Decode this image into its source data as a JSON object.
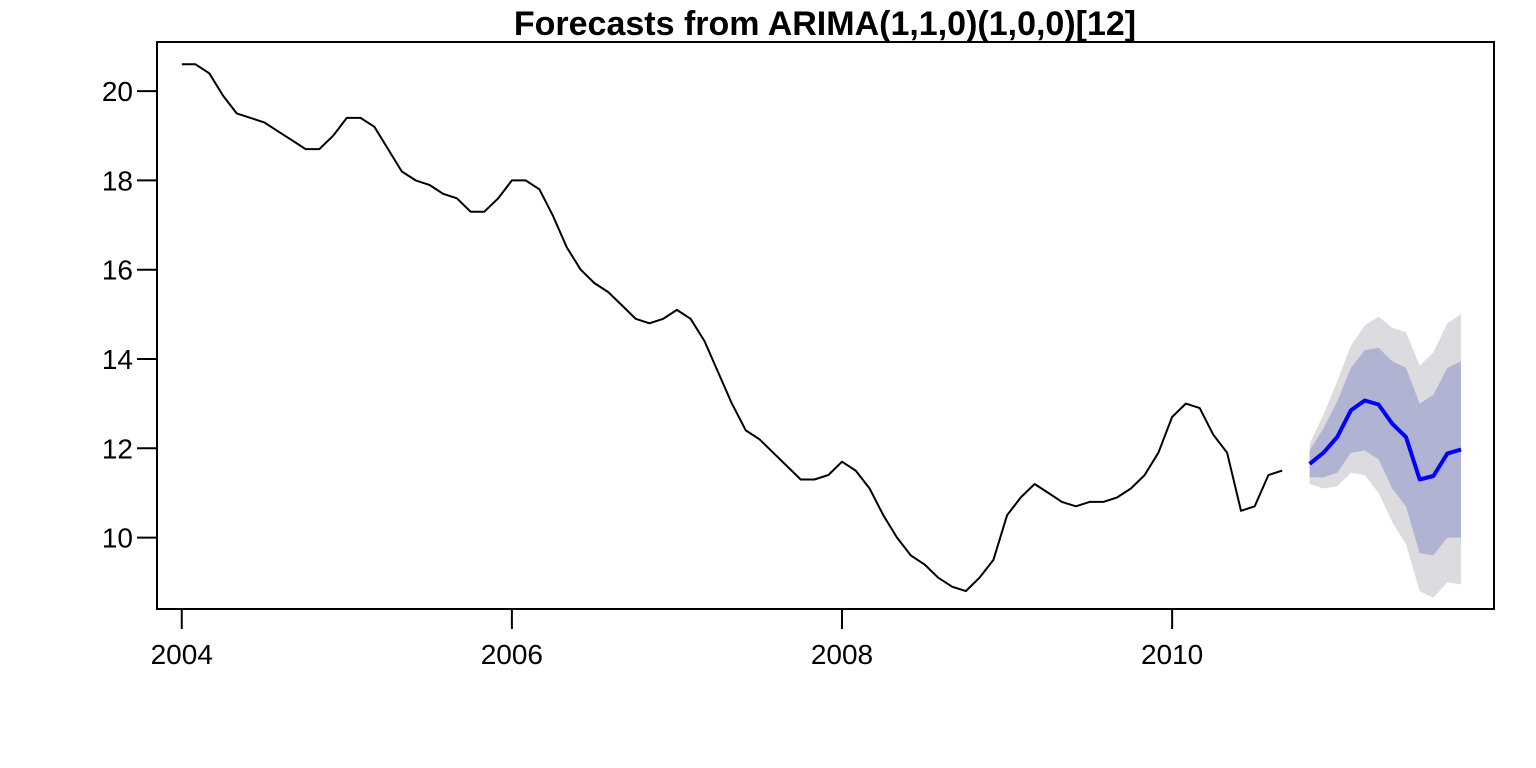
{
  "chart_data": {
    "type": "line",
    "title": "Forecasts from ARIMA(1,1,0)(1,0,0)[12]",
    "xlabel": "",
    "ylabel": "",
    "xlim": [
      2003.85,
      2011.95
    ],
    "ylim": [
      8.4,
      21.1
    ],
    "x_ticks": [
      2004,
      2006,
      2008,
      2010
    ],
    "x_tick_labels": [
      "2004",
      "2006",
      "2008",
      "2010"
    ],
    "y_ticks": [
      10,
      12,
      14,
      16,
      18,
      20
    ],
    "y_tick_labels": [
      "10",
      "12",
      "14",
      "16",
      "18",
      "20"
    ],
    "grid": false,
    "colors": {
      "observed": "#000000",
      "forecast": "#0000ff",
      "band80": "#b0b4d2",
      "band95": "#dbdbe0"
    },
    "series": [
      {
        "x": [
          2004.0,
          2004.083,
          2004.167,
          2004.25,
          2004.333,
          2004.417,
          2004.5,
          2004.583,
          2004.667,
          2004.75,
          2004.833,
          2004.917,
          2005.0,
          2005.083,
          2005.167,
          2005.25,
          2005.333,
          2005.417,
          2005.5,
          2005.583,
          2005.667,
          2005.75,
          2005.833,
          2005.917,
          2006.0,
          2006.083,
          2006.167,
          2006.25,
          2006.333,
          2006.417,
          2006.5,
          2006.583,
          2006.667,
          2006.75,
          2006.833,
          2006.917,
          2007.0,
          2007.083,
          2007.167,
          2007.25,
          2007.333,
          2007.417,
          2007.5,
          2007.583,
          2007.667,
          2007.75,
          2007.833,
          2007.917,
          2008.0,
          2008.083,
          2008.167,
          2008.25,
          2008.333,
          2008.417,
          2008.5,
          2008.583,
          2008.667,
          2008.75,
          2008.833,
          2008.917,
          2009.0,
          2009.083,
          2009.167,
          2009.25,
          2009.333,
          2009.417,
          2009.5,
          2009.583,
          2009.667,
          2009.75,
          2009.833,
          2009.917,
          2010.0,
          2010.083,
          2010.167,
          2010.25,
          2010.333,
          2010.417,
          2010.5,
          2010.583,
          2010.667
        ],
        "values": [
          20.6,
          20.6,
          20.4,
          19.9,
          19.5,
          19.4,
          19.3,
          19.1,
          18.9,
          18.7,
          18.7,
          19.0,
          19.4,
          19.4,
          19.2,
          18.7,
          18.2,
          18.0,
          17.9,
          17.7,
          17.6,
          17.3,
          17.3,
          17.6,
          18.0,
          18.0,
          17.8,
          17.2,
          16.5,
          16.0,
          15.7,
          15.5,
          15.2,
          14.9,
          14.8,
          14.9,
          15.1,
          14.9,
          14.4,
          13.7,
          13.0,
          12.4,
          12.2,
          11.9,
          11.6,
          11.3,
          11.3,
          11.4,
          11.7,
          11.5,
          11.1,
          10.5,
          10.0,
          9.6,
          9.4,
          9.1,
          8.9,
          8.8,
          9.1,
          9.5,
          10.5,
          10.9,
          11.2,
          11.0,
          10.8,
          10.7,
          10.8,
          10.8,
          10.9,
          11.1,
          11.4,
          11.9,
          12.7,
          13.0,
          12.9,
          12.3,
          11.9,
          10.6,
          10.7,
          11.4,
          11.5
        ]
      },
      {
        "x": [
          2010.833,
          2010.917,
          2011.0,
          2011.083,
          2011.167,
          2011.25,
          2011.333,
          2011.417,
          2011.5,
          2011.583,
          2011.667,
          2011.75
        ],
        "values": [
          11.65,
          11.9,
          12.25,
          12.85,
          13.07,
          12.98,
          12.55,
          12.25,
          11.3,
          11.38,
          11.88,
          11.97
        ],
        "lo80": [
          11.35,
          11.35,
          11.45,
          11.9,
          11.95,
          11.75,
          11.1,
          10.7,
          9.65,
          9.6,
          10.0,
          10.0
        ],
        "hi80": [
          11.95,
          12.45,
          13.05,
          13.8,
          14.2,
          14.25,
          13.95,
          13.8,
          13.0,
          13.2,
          13.8,
          13.95
        ],
        "lo95": [
          11.2,
          11.1,
          11.15,
          11.45,
          11.4,
          11.0,
          10.35,
          9.85,
          8.8,
          8.65,
          9.0,
          8.95
        ],
        "hi95": [
          12.1,
          12.75,
          13.5,
          14.3,
          14.75,
          14.95,
          14.7,
          14.6,
          13.85,
          14.15,
          14.8,
          15.0
        ]
      }
    ]
  }
}
